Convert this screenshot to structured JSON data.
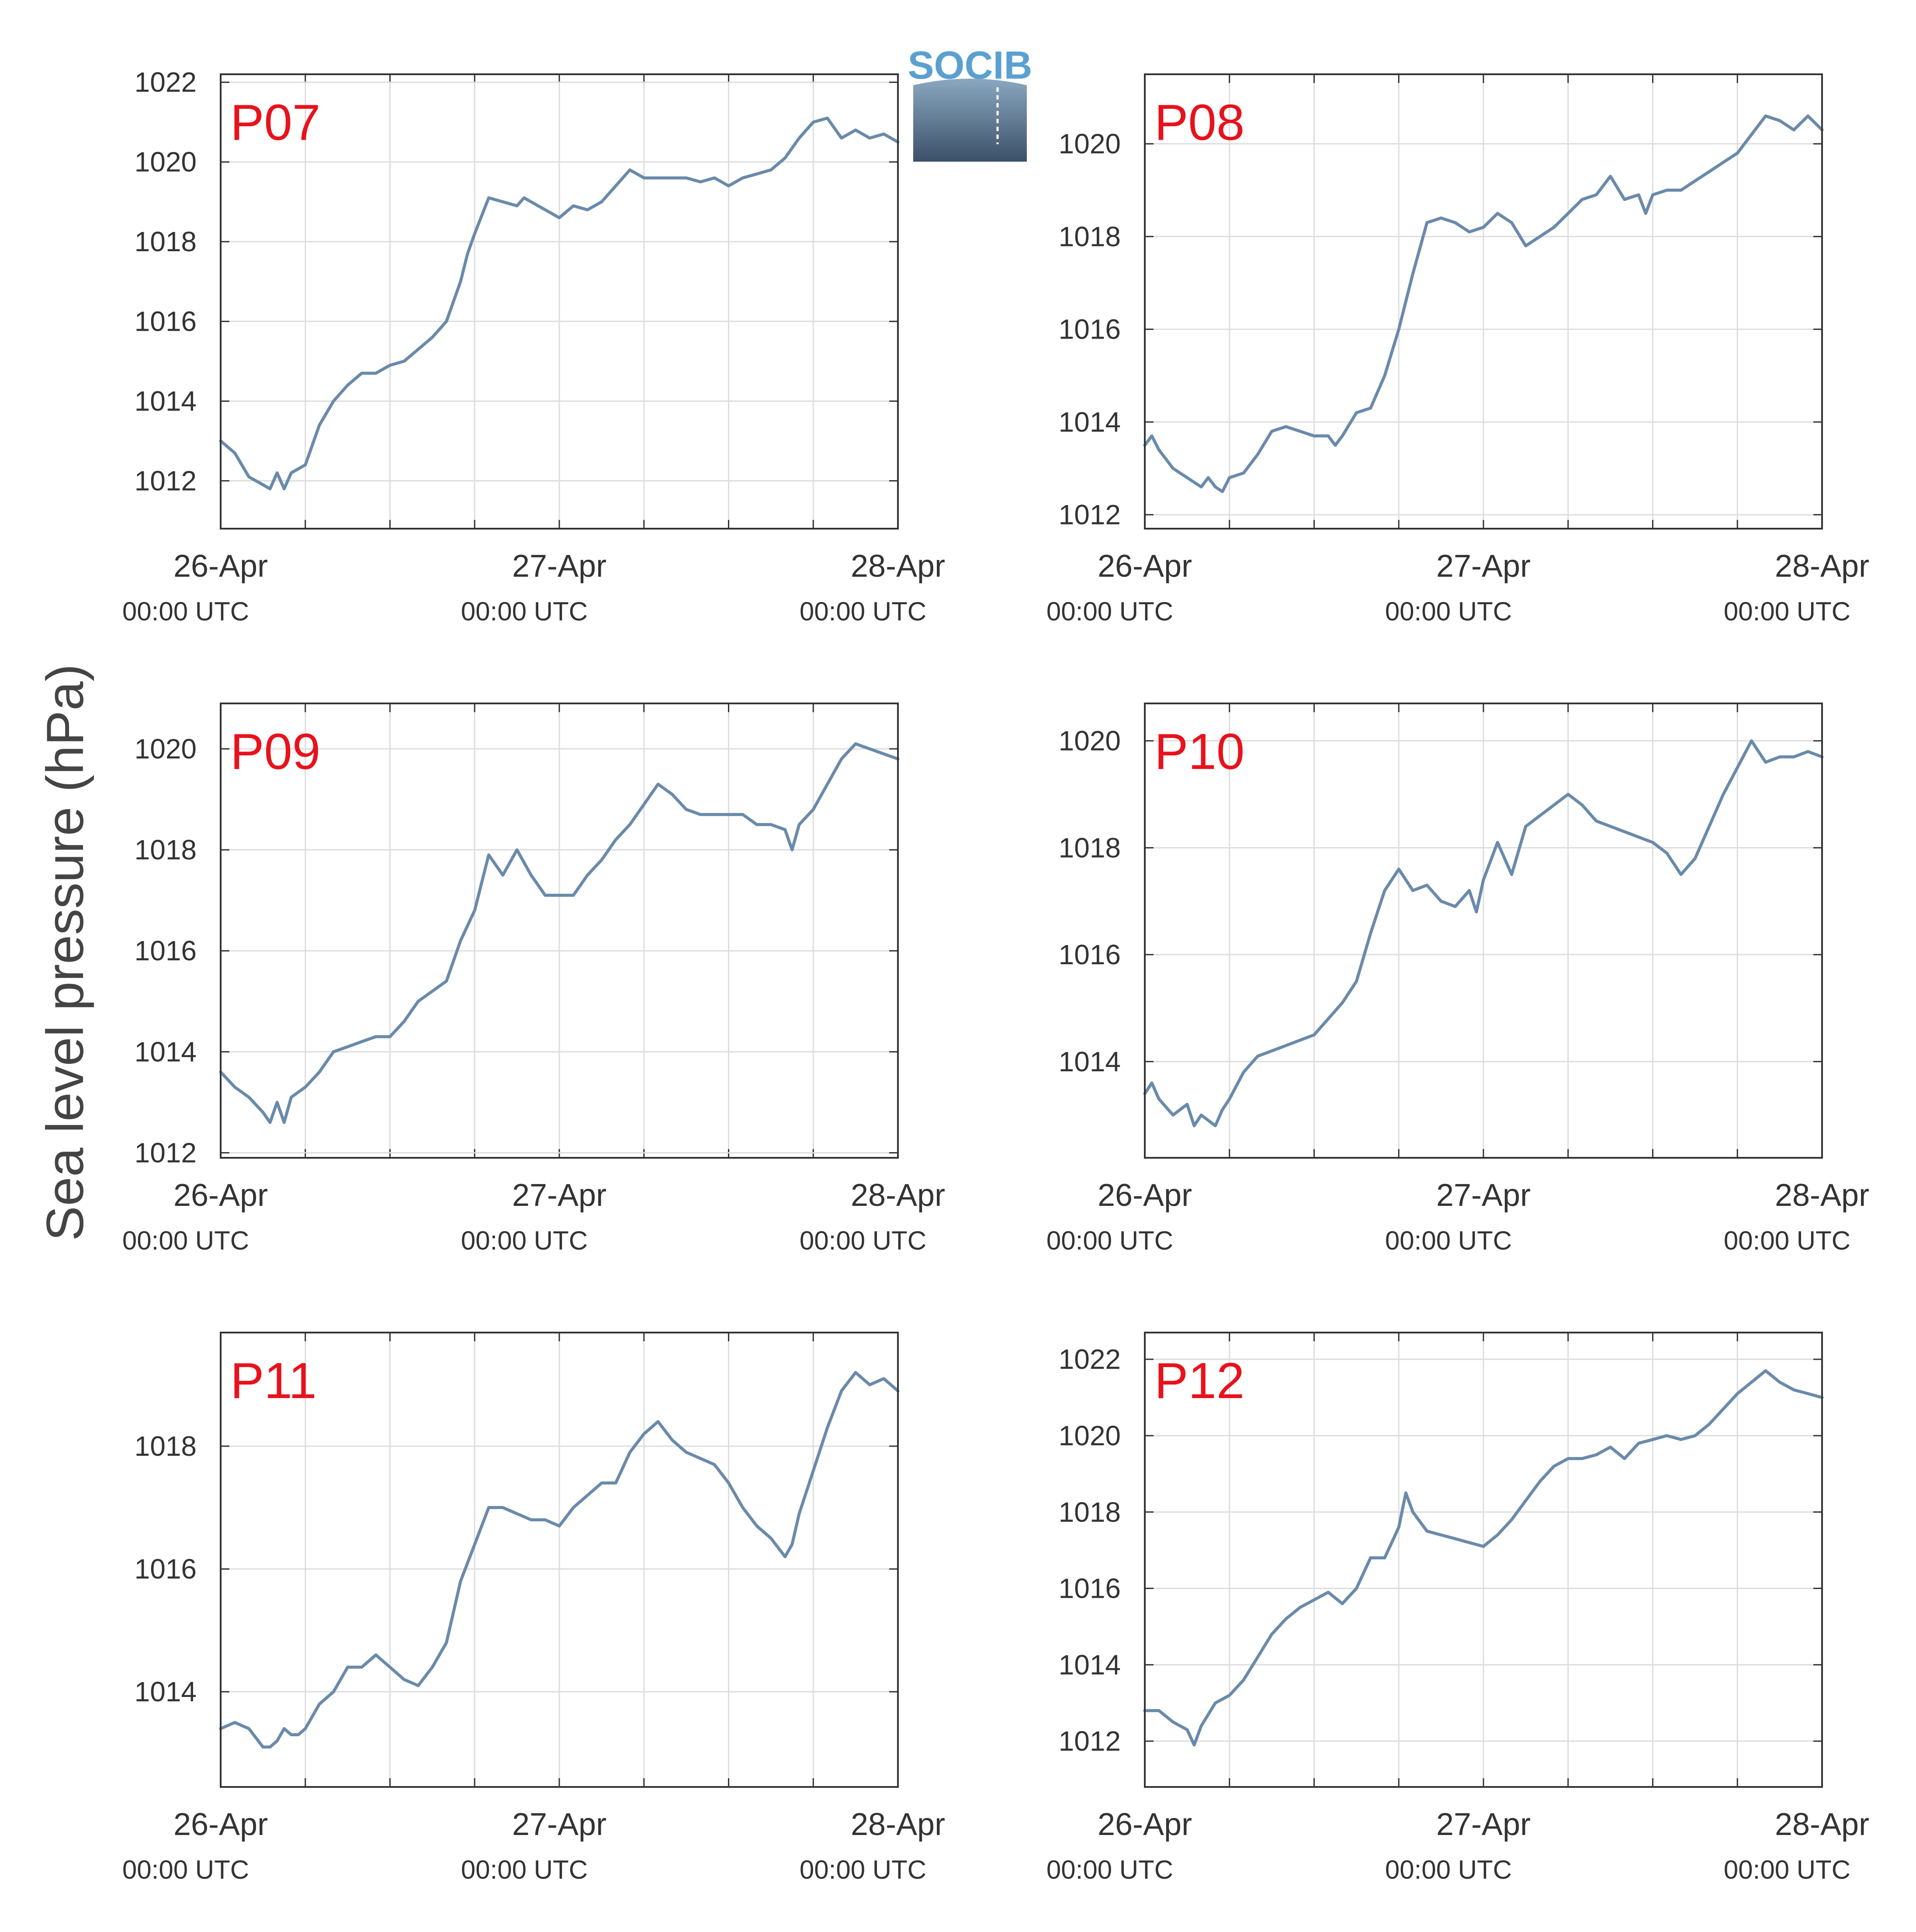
{
  "figure": {
    "ylabel": "Sea level pressure (hPa)",
    "logo_text": "SOCIB",
    "colors": {
      "line": "#6a8aaa",
      "title": "#e8121c",
      "grid": "#dddddd",
      "axis": "#333333"
    }
  },
  "chart_data": [
    {
      "type": "line",
      "title": "P07",
      "xticks": [
        {
          "x": 0,
          "date": "26-Apr",
          "time": "00:00 UTC"
        },
        {
          "x": 24,
          "date": "27-Apr",
          "time": "00:00 UTC"
        },
        {
          "x": 48,
          "date": "28-Apr",
          "time": "00:00 UTC"
        }
      ],
      "xlim": [
        0,
        48
      ],
      "ylim": [
        1010.8,
        1022.2
      ],
      "yticks": [
        1012,
        1014,
        1016,
        1018,
        1020,
        1022
      ],
      "x": [
        0,
        1,
        2,
        3,
        3.5,
        4,
        4.5,
        5,
        5.5,
        6,
        7,
        8,
        9,
        10,
        11,
        12,
        13,
        14,
        15,
        16,
        17,
        17.5,
        18,
        19,
        20,
        21,
        21.5,
        22,
        23,
        24,
        25,
        26,
        27,
        28,
        29,
        30,
        31,
        32,
        33,
        34,
        35,
        36,
        37,
        38,
        39,
        40,
        41,
        42,
        43,
        44,
        45,
        46,
        47,
        48
      ],
      "y": [
        1013.0,
        1012.7,
        1012.1,
        1011.9,
        1011.8,
        1012.2,
        1011.8,
        1012.2,
        1012.3,
        1012.4,
        1013.4,
        1014.0,
        1014.4,
        1014.7,
        1014.7,
        1014.9,
        1015.0,
        1015.3,
        1015.6,
        1016.0,
        1017.0,
        1017.7,
        1018.2,
        1019.1,
        1019.0,
        1018.9,
        1019.1,
        1019.0,
        1018.8,
        1018.6,
        1018.9,
        1018.8,
        1019.0,
        1019.4,
        1019.8,
        1019.6,
        1019.6,
        1019.6,
        1019.6,
        1019.5,
        1019.6,
        1019.4,
        1019.6,
        1019.7,
        1019.8,
        1020.1,
        1020.6,
        1021.0,
        1021.1,
        1020.6,
        1020.8,
        1020.6,
        1020.7,
        1020.5
      ]
    },
    {
      "type": "line",
      "title": "P08",
      "xticks": [
        {
          "x": 0,
          "date": "26-Apr",
          "time": "00:00 UTC"
        },
        {
          "x": 24,
          "date": "27-Apr",
          "time": "00:00 UTC"
        },
        {
          "x": 48,
          "date": "28-Apr",
          "time": "00:00 UTC"
        }
      ],
      "xlim": [
        0,
        48
      ],
      "ylim": [
        1011.7,
        1021.5
      ],
      "yticks": [
        1012,
        1014,
        1016,
        1018,
        1020
      ],
      "x": [
        0,
        0.5,
        1,
        2,
        3,
        4,
        4.5,
        5,
        5.5,
        6,
        7,
        8,
        9,
        10,
        11,
        12,
        13,
        13.5,
        14,
        15,
        16,
        17,
        18,
        19,
        20,
        21,
        22,
        23,
        24,
        25,
        26,
        27,
        28,
        29,
        30,
        31,
        32,
        33,
        34,
        35,
        35.5,
        36,
        37,
        38,
        39,
        40,
        41,
        42,
        43,
        44,
        45,
        46,
        47,
        48
      ],
      "y": [
        1013.5,
        1013.7,
        1013.4,
        1013.0,
        1012.8,
        1012.6,
        1012.8,
        1012.6,
        1012.5,
        1012.8,
        1012.9,
        1013.3,
        1013.8,
        1013.9,
        1013.8,
        1013.7,
        1013.7,
        1013.5,
        1013.7,
        1014.2,
        1014.3,
        1015.0,
        1016.0,
        1017.2,
        1018.3,
        1018.4,
        1018.3,
        1018.1,
        1018.2,
        1018.5,
        1018.3,
        1017.8,
        1018.0,
        1018.2,
        1018.5,
        1018.8,
        1018.9,
        1019.3,
        1018.8,
        1018.9,
        1018.5,
        1018.9,
        1019.0,
        1019.0,
        1019.2,
        1019.4,
        1019.6,
        1019.8,
        1020.2,
        1020.6,
        1020.5,
        1020.3,
        1020.6,
        1020.3
      ]
    },
    {
      "type": "line",
      "title": "P09",
      "xticks": [
        {
          "x": 0,
          "date": "26-Apr",
          "time": "00:00 UTC"
        },
        {
          "x": 24,
          "date": "27-Apr",
          "time": "00:00 UTC"
        },
        {
          "x": 48,
          "date": "28-Apr",
          "time": "00:00 UTC"
        }
      ],
      "xlim": [
        0,
        48
      ],
      "ylim": [
        1011.9,
        1020.9
      ],
      "yticks": [
        1012,
        1014,
        1016,
        1018,
        1020
      ],
      "x": [
        0,
        1,
        2,
        3,
        3.5,
        4,
        4.5,
        5,
        5.5,
        6,
        7,
        8,
        9,
        10,
        11,
        12,
        13,
        14,
        15,
        16,
        17,
        18,
        19,
        20,
        21,
        22,
        23,
        24,
        25,
        26,
        27,
        28,
        29,
        30,
        31,
        32,
        33,
        34,
        35,
        36,
        37,
        38,
        39,
        40,
        40.5,
        41,
        42,
        43,
        44,
        45,
        46,
        47,
        48
      ],
      "y": [
        1013.6,
        1013.3,
        1013.1,
        1012.8,
        1012.6,
        1013.0,
        1012.6,
        1013.1,
        1013.2,
        1013.3,
        1013.6,
        1014.0,
        1014.1,
        1014.2,
        1014.3,
        1014.3,
        1014.6,
        1015.0,
        1015.2,
        1015.4,
        1016.2,
        1016.8,
        1017.9,
        1017.5,
        1018.0,
        1017.5,
        1017.1,
        1017.1,
        1017.1,
        1017.5,
        1017.8,
        1018.2,
        1018.5,
        1018.9,
        1019.3,
        1019.1,
        1018.8,
        1018.7,
        1018.7,
        1018.7,
        1018.7,
        1018.5,
        1018.5,
        1018.4,
        1018.0,
        1018.5,
        1018.8,
        1019.3,
        1019.8,
        1020.1,
        1020.0,
        1019.9,
        1019.8
      ]
    },
    {
      "type": "line",
      "title": "P10",
      "xticks": [
        {
          "x": 0,
          "date": "26-Apr",
          "time": "00:00 UTC"
        },
        {
          "x": 24,
          "date": "27-Apr",
          "time": "00:00 UTC"
        },
        {
          "x": 48,
          "date": "28-Apr",
          "time": "00:00 UTC"
        }
      ],
      "xlim": [
        0,
        48
      ],
      "ylim": [
        1012.2,
        1020.7
      ],
      "yticks": [
        1014,
        1016,
        1018,
        1020
      ],
      "x": [
        0,
        0.5,
        1,
        2,
        3,
        3.5,
        4,
        4.5,
        5,
        5.5,
        6,
        7,
        8,
        9,
        10,
        11,
        12,
        13,
        14,
        15,
        16,
        17,
        18,
        19,
        20,
        21,
        22,
        23,
        23.5,
        24,
        25,
        26,
        27,
        28,
        29,
        30,
        31,
        32,
        33,
        34,
        35,
        36,
        37,
        38,
        39,
        40,
        41,
        42,
        43,
        44,
        45,
        46,
        47,
        48
      ],
      "y": [
        1013.4,
        1013.6,
        1013.3,
        1013.0,
        1013.2,
        1012.8,
        1013.0,
        1012.9,
        1012.8,
        1013.1,
        1013.3,
        1013.8,
        1014.1,
        1014.2,
        1014.3,
        1014.4,
        1014.5,
        1014.8,
        1015.1,
        1015.5,
        1016.4,
        1017.2,
        1017.6,
        1017.2,
        1017.3,
        1017.0,
        1016.9,
        1017.2,
        1016.8,
        1017.4,
        1018.1,
        1017.5,
        1018.4,
        1018.6,
        1018.8,
        1019.0,
        1018.8,
        1018.5,
        1018.4,
        1018.3,
        1018.2,
        1018.1,
        1017.9,
        1017.5,
        1017.8,
        1018.4,
        1019.0,
        1019.5,
        1020.0,
        1019.6,
        1019.7,
        1019.7,
        1019.8,
        1019.7
      ]
    },
    {
      "type": "line",
      "title": "P11",
      "xticks": [
        {
          "x": 0,
          "date": "26-Apr",
          "time": "00:00 UTC"
        },
        {
          "x": 24,
          "date": "27-Apr",
          "time": "00:00 UTC"
        },
        {
          "x": 48,
          "date": "28-Apr",
          "time": "00:00 UTC"
        }
      ],
      "xlim": [
        0,
        48
      ],
      "ylim": [
        1012.45,
        1019.85
      ],
      "yticks": [
        1014,
        1016,
        1018
      ],
      "x": [
        0,
        1,
        2,
        3,
        3.5,
        4,
        4.5,
        5,
        5.5,
        6,
        7,
        8,
        9,
        10,
        11,
        12,
        13,
        14,
        15,
        16,
        17,
        18,
        19,
        20,
        21,
        22,
        23,
        24,
        25,
        26,
        27,
        28,
        29,
        30,
        31,
        32,
        33,
        34,
        35,
        36,
        37,
        38,
        39,
        40,
        40.5,
        41,
        42,
        43,
        44,
        45,
        46,
        47,
        48
      ],
      "y": [
        1013.4,
        1013.5,
        1013.4,
        1013.1,
        1013.1,
        1013.2,
        1013.4,
        1013.3,
        1013.3,
        1013.4,
        1013.8,
        1014.0,
        1014.4,
        1014.4,
        1014.6,
        1014.4,
        1014.2,
        1014.1,
        1014.4,
        1014.8,
        1015.8,
        1016.4,
        1017.0,
        1017.0,
        1016.9,
        1016.8,
        1016.8,
        1016.7,
        1017.0,
        1017.2,
        1017.4,
        1017.4,
        1017.9,
        1018.2,
        1018.4,
        1018.1,
        1017.9,
        1017.8,
        1017.7,
        1017.4,
        1017.0,
        1016.7,
        1016.5,
        1016.2,
        1016.4,
        1016.9,
        1017.6,
        1018.3,
        1018.9,
        1019.2,
        1019.0,
        1019.1,
        1018.9
      ]
    },
    {
      "type": "line",
      "title": "P12",
      "xticks": [
        {
          "x": 0,
          "date": "26-Apr",
          "time": "00:00 UTC"
        },
        {
          "x": 24,
          "date": "27-Apr",
          "time": "00:00 UTC"
        },
        {
          "x": 48,
          "date": "28-Apr",
          "time": "00:00 UTC"
        }
      ],
      "xlim": [
        0,
        48
      ],
      "ylim": [
        1010.8,
        1022.7
      ],
      "yticks": [
        1012,
        1014,
        1016,
        1018,
        1020,
        1022
      ],
      "x": [
        0,
        1,
        2,
        3,
        3.5,
        4,
        5,
        6,
        7,
        8,
        9,
        10,
        11,
        12,
        13,
        14,
        15,
        16,
        17,
        18,
        18.5,
        19,
        20,
        21,
        22,
        23,
        24,
        25,
        26,
        27,
        28,
        29,
        30,
        31,
        32,
        33,
        34,
        35,
        36,
        37,
        38,
        39,
        40,
        41,
        42,
        43,
        44,
        45,
        46,
        47,
        48
      ],
      "y": [
        1012.8,
        1012.8,
        1012.5,
        1012.3,
        1011.9,
        1012.4,
        1013.0,
        1013.2,
        1013.6,
        1014.2,
        1014.8,
        1015.2,
        1015.5,
        1015.7,
        1015.9,
        1015.6,
        1016.0,
        1016.8,
        1016.8,
        1017.6,
        1018.5,
        1018.0,
        1017.5,
        1017.4,
        1017.3,
        1017.2,
        1017.1,
        1017.4,
        1017.8,
        1018.3,
        1018.8,
        1019.2,
        1019.4,
        1019.4,
        1019.5,
        1019.7,
        1019.4,
        1019.8,
        1019.9,
        1020.0,
        1019.9,
        1020.0,
        1020.3,
        1020.7,
        1021.1,
        1021.4,
        1021.7,
        1021.4,
        1021.2,
        1021.1,
        1021.0
      ]
    }
  ]
}
